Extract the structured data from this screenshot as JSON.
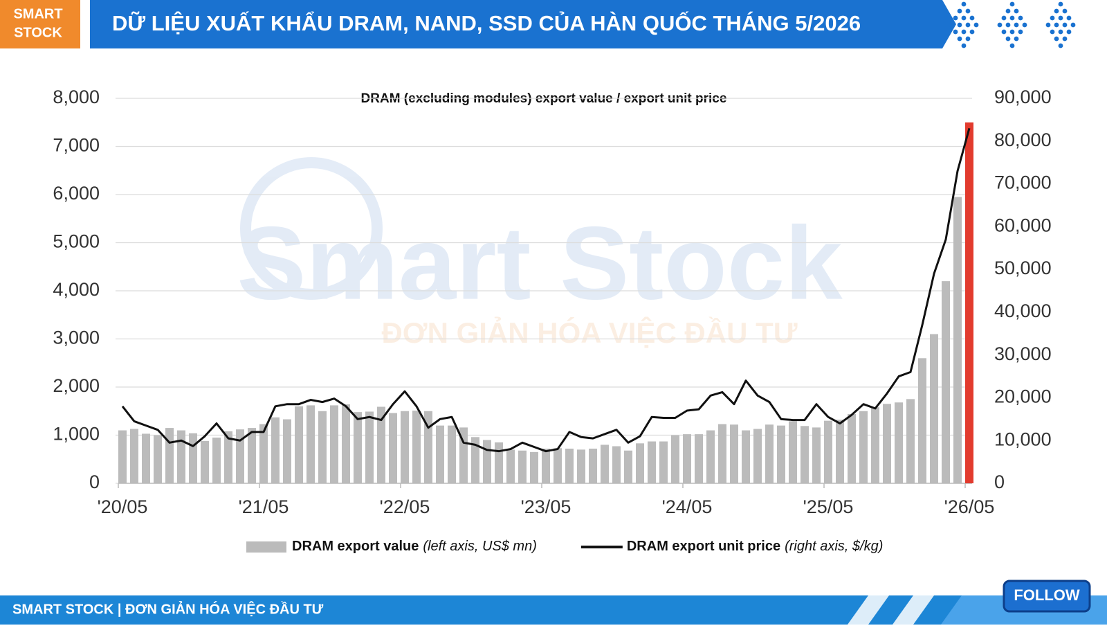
{
  "header": {
    "logo": [
      "SMART",
      "STOCK"
    ],
    "title": "DỮ LIỆU XUẤT KHẨU DRAM, NAND, SSD CỦA HÀN QUỐC THÁNG 5/2026"
  },
  "watermark": {
    "brand": "Smart Stock",
    "slogan": "ĐƠN GIẢN HÓA VIỆC ĐẦU TƯ"
  },
  "chart_data": {
    "type": "bar",
    "title": "DRAM (excluding modules) export value / export unit price",
    "categories": [
      "'20/05",
      null,
      null,
      null,
      null,
      null,
      null,
      null,
      null,
      null,
      null,
      null,
      "'21/05",
      null,
      null,
      null,
      null,
      null,
      null,
      null,
      null,
      null,
      null,
      null,
      "'22/05",
      null,
      null,
      null,
      null,
      null,
      null,
      null,
      null,
      null,
      null,
      null,
      "'23/05",
      null,
      null,
      null,
      null,
      null,
      null,
      null,
      null,
      null,
      null,
      null,
      "'24/05",
      null,
      null,
      null,
      null,
      null,
      null,
      null,
      null,
      null,
      null,
      null,
      "'25/05",
      null,
      null,
      null,
      null,
      null,
      null,
      null,
      null,
      null,
      null,
      null,
      "'26/05"
    ],
    "series": [
      {
        "name": "DRAM export value",
        "note": "(left axis, US$ mn)",
        "type": "bar",
        "color": "#bbbbbb",
        "colors": [
          "#bbbbbb",
          "#bbbbbb",
          "#bbbbbb",
          "#bbbbbb",
          "#bbbbbb",
          "#bbbbbb",
          "#bbbbbb",
          "#bbbbbb",
          "#bbbbbb",
          "#bbbbbb",
          "#bbbbbb",
          "#bbbbbb",
          "#bbbbbb",
          "#bbbbbb",
          "#bbbbbb",
          "#bbbbbb",
          "#bbbbbb",
          "#bbbbbb",
          "#bbbbbb",
          "#bbbbbb",
          "#bbbbbb",
          "#bbbbbb",
          "#bbbbbb",
          "#bbbbbb",
          "#bbbbbb",
          "#bbbbbb",
          "#bbbbbb",
          "#bbbbbb",
          "#bbbbbb",
          "#bbbbbb",
          "#bbbbbb",
          "#bbbbbb",
          "#bbbbbb",
          "#bbbbbb",
          "#bbbbbb",
          "#bbbbbb",
          "#bbbbbb",
          "#bbbbbb",
          "#bbbbbb",
          "#bbbbbb",
          "#bbbbbb",
          "#bbbbbb",
          "#bbbbbb",
          "#bbbbbb",
          "#bbbbbb",
          "#bbbbbb",
          "#bbbbbb",
          "#bbbbbb",
          "#bbbbbb",
          "#bbbbbb",
          "#bbbbbb",
          "#bbbbbb",
          "#bbbbbb",
          "#bbbbbb",
          "#bbbbbb",
          "#bbbbbb",
          "#bbbbbb",
          "#bbbbbb",
          "#bbbbbb",
          "#bbbbbb",
          "#bbbbbb",
          "#bbbbbb",
          "#bbbbbb",
          "#bbbbbb",
          "#bbbbbb",
          "#bbbbbb",
          "#bbbbbb",
          "#bbbbbb",
          "#bbbbbb",
          "#bbbbbb",
          "#bbbbbb",
          "#bbbbbb",
          "#e23b2e"
        ],
        "values": [
          1100,
          1130,
          1030,
          1000,
          1150,
          1100,
          1040,
          880,
          950,
          1080,
          1120,
          1150,
          1230,
          1370,
          1330,
          1600,
          1620,
          1500,
          1620,
          1640,
          1480,
          1490,
          1590,
          1460,
          1500,
          1510,
          1500,
          1200,
          1200,
          1160,
          960,
          900,
          850,
          700,
          680,
          650,
          720,
          730,
          720,
          700,
          720,
          800,
          770,
          680,
          830,
          870,
          870,
          1000,
          1020,
          1020,
          1100,
          1230,
          1220,
          1100,
          1130,
          1220,
          1200,
          1290,
          1190,
          1160,
          1300,
          1320,
          1440,
          1500,
          1580,
          1650,
          1680,
          1750,
          2600,
          3100,
          4200,
          5950,
          7500
        ]
      },
      {
        "name": "DRAM export unit price",
        "note": "(right axis, $/kg)",
        "type": "line",
        "axis": "y2",
        "color": "#111111",
        "values": [
          18000,
          14500,
          13500,
          12500,
          9500,
          10000,
          8700,
          11000,
          14000,
          10500,
          10000,
          12000,
          12000,
          18000,
          18500,
          18500,
          19500,
          19000,
          19800,
          18000,
          15000,
          15500,
          14800,
          18500,
          21500,
          18000,
          13000,
          15000,
          15500,
          9500,
          9000,
          7800,
          7500,
          8000,
          9500,
          8500,
          7500,
          8000,
          12000,
          10800,
          10500,
          11500,
          12500,
          9500,
          11000,
          15500,
          15300,
          15300,
          17000,
          17300,
          20500,
          21300,
          18500,
          24000,
          20500,
          19000,
          15000,
          14800,
          14800,
          18500,
          15500,
          14000,
          16000,
          18500,
          17500,
          21000,
          25000,
          26000,
          37000,
          49000,
          57000,
          73000,
          83000
        ]
      }
    ],
    "ylim": [
      0,
      8000
    ],
    "yticks": [
      0,
      {
        "value": 1000,
        "label": "1,000"
      },
      {
        "value": 2000,
        "label": "2,000"
      },
      {
        "value": 3000,
        "label": "3,000"
      },
      {
        "value": 4000,
        "label": "4,000"
      },
      {
        "value": 5000,
        "label": "5,000"
      },
      {
        "value": 6000,
        "label": "6,000"
      },
      {
        "value": 7000,
        "label": "7,000"
      },
      {
        "value": 8000,
        "label": "8,000"
      }
    ],
    "y2lim": [
      0,
      90000
    ],
    "y2ticks": [
      0,
      {
        "value": 10000,
        "label": "10,000"
      },
      {
        "value": 20000,
        "label": "20,000"
      },
      {
        "value": 30000,
        "label": "30,000"
      },
      {
        "value": 40000,
        "label": "40,000"
      },
      {
        "value": 50000,
        "label": "50,000"
      },
      {
        "value": 60000,
        "label": "60,000"
      },
      {
        "value": 70000,
        "label": "70,000"
      },
      {
        "value": 80000,
        "label": "80,000"
      },
      {
        "value": 90000,
        "label": "90,000"
      }
    ],
    "grid": true,
    "legend": "bottom"
  },
  "footer": {
    "text": "SMART STOCK | ĐƠN GIẢN HÓA VIỆC ĐẦU TƯ",
    "button": "FOLLOW"
  }
}
